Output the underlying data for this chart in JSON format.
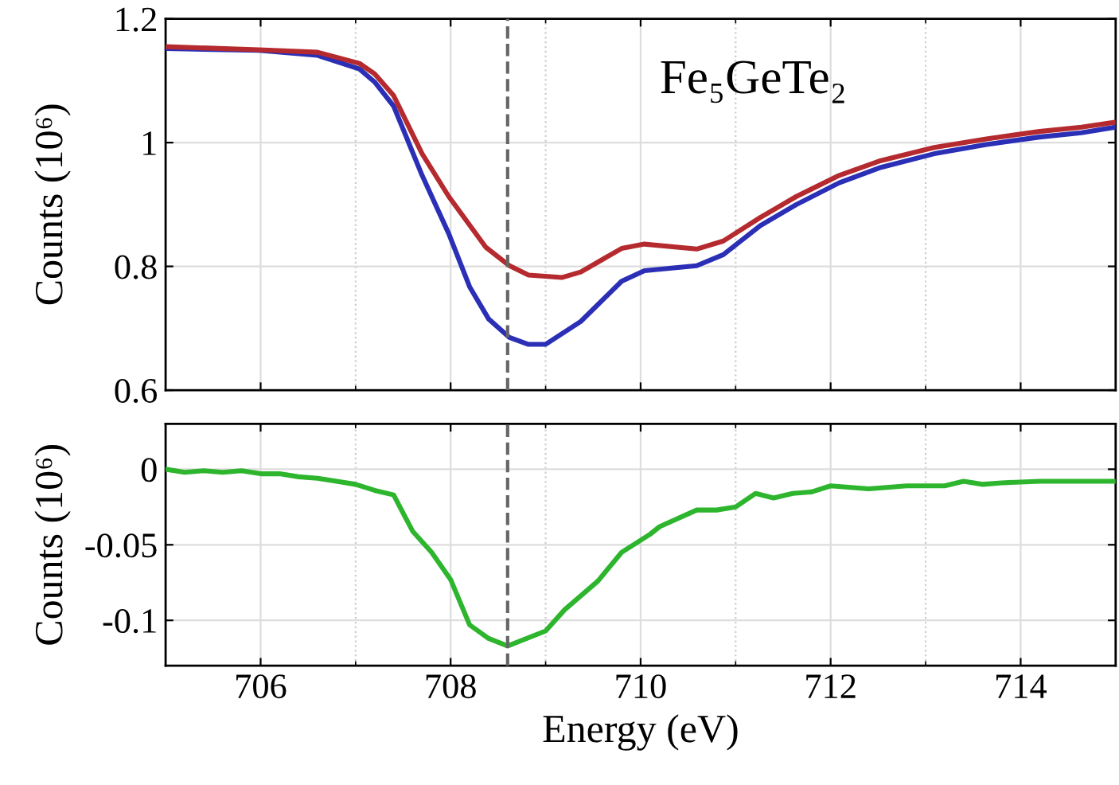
{
  "chart_data": [
    {
      "type": "line",
      "ylabel": "Counts (10⁶)",
      "annotations": [
        "Fe₅GeTe₂"
      ],
      "xlim": [
        705,
        715
      ],
      "xticks": [
        706,
        708,
        710,
        712,
        714
      ],
      "ylim": [
        0.6,
        1.2
      ],
      "yticks": [
        0.6,
        0.8,
        1,
        1.2
      ],
      "tick_labels": "y",
      "grid": true,
      "line_style": "solid",
      "ref_lines": [
        {
          "axis": "x",
          "value": 708.6,
          "color": "#666666",
          "line_style": "dashed"
        }
      ],
      "series": [
        {
          "color": "#2b2fb5",
          "x": [
            705,
            705.98,
            706.6,
            707.04,
            707.2,
            707.4,
            707.7,
            707.98,
            708.2,
            708.4,
            708.62,
            708.82,
            709.0,
            709.37,
            709.8,
            710.04,
            710.59,
            710.87,
            711.26,
            711.64,
            712.09,
            712.53,
            713.09,
            713.64,
            714.2,
            714.64,
            715
          ],
          "values": [
            1.152,
            1.149,
            1.141,
            1.119,
            1.098,
            1.059,
            0.947,
            0.853,
            0.767,
            0.715,
            0.685,
            0.674,
            0.674,
            0.711,
            0.776,
            0.793,
            0.801,
            0.819,
            0.866,
            0.9,
            0.935,
            0.96,
            0.982,
            0.997,
            1.009,
            1.016,
            1.025
          ]
        },
        {
          "color": "#b52a2e",
          "x": [
            705,
            705.98,
            706.6,
            707.04,
            707.2,
            707.4,
            707.7,
            707.98,
            708.37,
            708.62,
            708.82,
            709.17,
            709.37,
            709.8,
            710.04,
            710.59,
            710.87,
            711.26,
            711.64,
            712.09,
            712.53,
            713.09,
            713.64,
            714.2,
            714.64,
            715
          ],
          "values": [
            1.155,
            1.15,
            1.146,
            1.128,
            1.111,
            1.076,
            0.982,
            0.913,
            0.831,
            0.801,
            0.786,
            0.782,
            0.791,
            0.829,
            0.836,
            0.828,
            0.841,
            0.879,
            0.913,
            0.947,
            0.971,
            0.992,
            1.006,
            1.018,
            1.025,
            1.033
          ]
        }
      ]
    },
    {
      "type": "line",
      "xlabel": "Energy (eV)",
      "ylabel": "Counts (10⁶)",
      "xlim": [
        705,
        715
      ],
      "xticks": [
        706,
        708,
        710,
        712,
        714
      ],
      "ylim": [
        -0.13,
        0.03
      ],
      "yticks": [
        -0.1,
        -0.05,
        0
      ],
      "grid": true,
      "line_style": "solid",
      "ref_lines": [
        {
          "axis": "x",
          "value": 708.6,
          "color": "#666666",
          "line_style": "dashed"
        }
      ],
      "series": [
        {
          "color": "#2db52d",
          "x": [
            705,
            705.2,
            705.4,
            705.6,
            705.8,
            706.0,
            706.2,
            706.4,
            706.6,
            706.8,
            707.0,
            707.2,
            707.4,
            707.6,
            707.8,
            708.0,
            708.2,
            708.4,
            708.6,
            709.0,
            709.2,
            709.55,
            709.8,
            710.1,
            710.2,
            710.59,
            710.8,
            711.0,
            711.21,
            711.4,
            711.6,
            711.8,
            712.0,
            712.4,
            712.8,
            713.2,
            713.4,
            713.6,
            713.8,
            714.2,
            714.6,
            715
          ],
          "values": [
            0,
            -0.002,
            -0.001,
            -0.002,
            -0.001,
            -0.003,
            -0.003,
            -0.005,
            -0.006,
            -0.008,
            -0.01,
            -0.014,
            -0.017,
            -0.041,
            -0.055,
            -0.073,
            -0.103,
            -0.112,
            -0.117,
            -0.107,
            -0.093,
            -0.074,
            -0.055,
            -0.043,
            -0.038,
            -0.027,
            -0.027,
            -0.025,
            -0.016,
            -0.019,
            -0.016,
            -0.015,
            -0.011,
            -0.013,
            -0.011,
            -0.011,
            -0.008,
            -0.01,
            -0.009,
            -0.008,
            -0.008,
            -0.008
          ]
        }
      ]
    }
  ]
}
